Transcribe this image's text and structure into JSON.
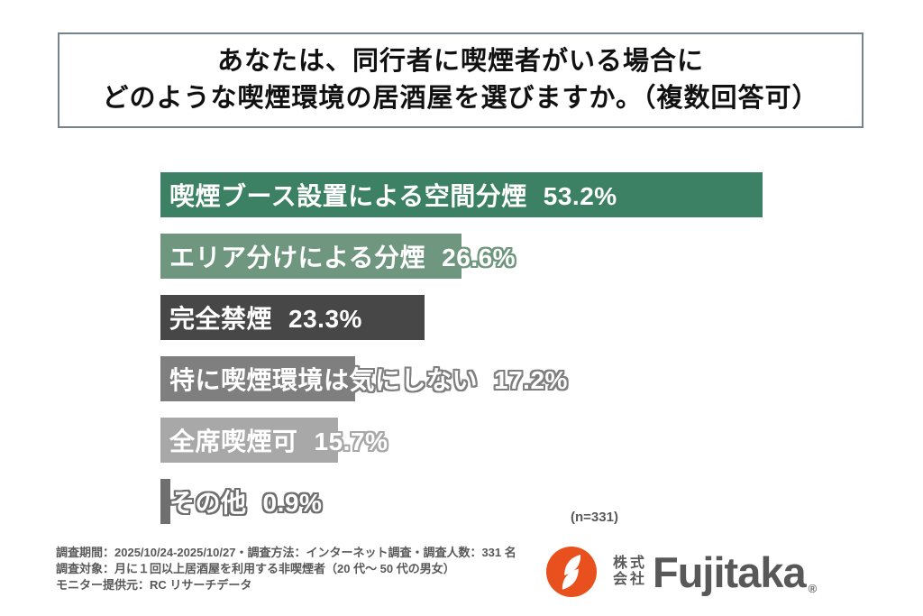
{
  "title": {
    "line1": "あなたは、同行者に喫煙者がいる場合に",
    "line2": "どのような喫煙環境の居酒屋を選びますか。（複数回答可）"
  },
  "chart_data": {
    "type": "bar",
    "orientation": "horizontal",
    "title": "あなたは、同行者に喫煙者がいる場合にどのような喫煙環境の居酒屋を選びますか。（複数回答可）",
    "categories": [
      "喫煙ブース設置による空間分煙",
      "エリア分けによる分煙",
      "完全禁煙",
      "特に喫煙環境は気にしない",
      "全席喫煙可",
      "その他"
    ],
    "values": [
      53.2,
      26.6,
      23.3,
      17.2,
      15.7,
      0.9
    ],
    "value_suffix": "%",
    "xlim": [
      0,
      56
    ],
    "grid": false,
    "axes_visible": false,
    "bars": [
      {
        "label": "喫煙ブース設置による空間分煙",
        "value": 53.2,
        "display": "53.2%",
        "color": "#3d8164"
      },
      {
        "label": "エリア分けによる分煙",
        "value": 26.6,
        "display": "26.6%",
        "color": "#6f977f"
      },
      {
        "label": "完全禁煙",
        "value": 23.3,
        "display": "23.3%",
        "color": "#474747"
      },
      {
        "label": "特に喫煙環境は気にしない",
        "value": 17.2,
        "display": "17.2%",
        "color": "#7f7f7f"
      },
      {
        "label": "全席喫煙可",
        "value": 15.7,
        "display": "15.7%",
        "color": "#a8a8a8"
      },
      {
        "label": "その他",
        "value": 0.9,
        "display": "0.9%",
        "color": "#6f6f6f"
      }
    ],
    "sample_note": "(n=331)"
  },
  "footer": {
    "lines": [
      "調査期間：2025/10/24-2025/10/27・調査方法：インターネット調査・調査人数：331 名",
      "調査対象：月に１回以上居酒屋を利用する非喫煙者（20 代～ 50 代の男女）",
      "モニター提供元：RC リサーチデータ"
    ]
  },
  "logo": {
    "company_prefix_line1": "株式",
    "company_prefix_line2": "会社",
    "brand": "Fujitaka",
    "registered_mark": "®",
    "icon_name": "fujitaka-leaf-icon",
    "icon_color": "#e8511e",
    "brand_color": "#585858"
  }
}
